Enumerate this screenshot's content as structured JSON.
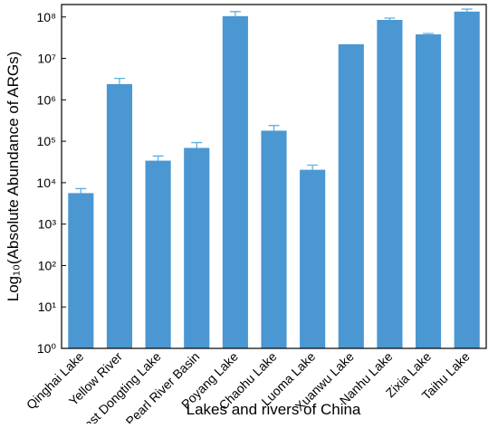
{
  "chart_data": {
    "type": "bar",
    "ylabel": "Log₁₀(Absolute Abundance of ARGs)",
    "xlabel": "Lakes and rivers of China",
    "categories": [
      "Qinghai Lake",
      "Yellow River",
      "East Dongting Lake",
      "Pearl River Basin",
      "Poyang Lake",
      "Chaohu Lake",
      "Luoma Lake",
      "Xuanwu Lake",
      "Nanhu Lake",
      "Zixia Lake",
      "Taihu Lake"
    ],
    "values": [
      5600,
      2400000,
      34000,
      69000,
      105000000,
      180000,
      20500,
      22000000,
      85000000,
      38000000,
      135000000
    ],
    "errors": [
      1600,
      900000,
      10000,
      24000,
      30000000,
      60000,
      6000,
      null,
      9000000,
      2000000,
      20000000
    ],
    "color": "#4a97d2",
    "error_color": "#5fb0e0",
    "log_y": true,
    "ylim": [
      1,
      200000000
    ],
    "yticks": [
      {
        "value": 1,
        "label": "10⁰"
      },
      {
        "value": 10,
        "label": "10¹"
      },
      {
        "value": 100,
        "label": "10²"
      },
      {
        "value": 1000,
        "label": "10³"
      },
      {
        "value": 10000,
        "label": "10⁴"
      },
      {
        "value": 100000,
        "label": "10⁵"
      },
      {
        "value": 1000000,
        "label": "10⁶"
      },
      {
        "value": 10000000,
        "label": "10⁷"
      },
      {
        "value": 100000000,
        "label": "10⁸"
      }
    ],
    "grid": false
  }
}
